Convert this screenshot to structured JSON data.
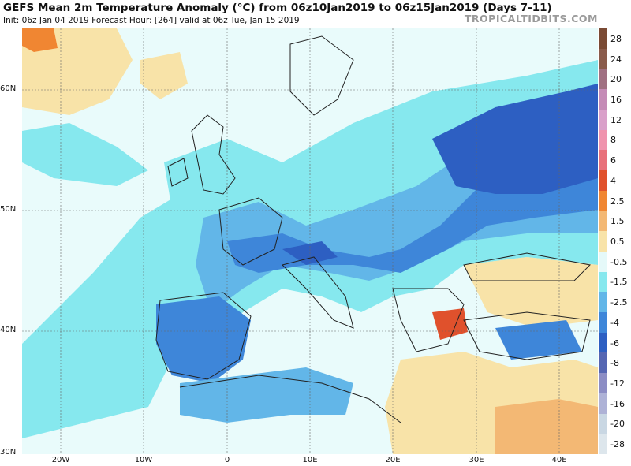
{
  "header": {
    "title": "GEFS Mean 2m Temperature Anomaly (°C) from 06z10Jan2019 to 06z15Jan2019 (Days 7-11)",
    "subtitle": "Init: 06z Jan 04 2019   Forecast Hour: [264]   valid at 06z Tue, Jan 15 2019",
    "brand": "TROPICALTIDBITS.COM"
  },
  "axes": {
    "lat_labels": [
      "60N",
      "50N",
      "40N",
      "30N"
    ],
    "lon_labels": [
      "20W",
      "10W",
      "0",
      "10E",
      "20E",
      "30E",
      "40E"
    ]
  },
  "colorbar": {
    "labels": [
      "28",
      "24",
      "20",
      "16",
      "12",
      "8",
      "6",
      "4",
      "2.5",
      "1.5",
      "0.5",
      "-0.5",
      "-1.5",
      "-2.5",
      "-4",
      "-6",
      "-8",
      "-12",
      "-16",
      "-20",
      "-28"
    ],
    "colors": [
      "#7a4a34",
      "#8a5b4b",
      "#a07082",
      "#c48bb6",
      "#d9a0c9",
      "#ef93ad",
      "#e8707a",
      "#e0512c",
      "#f08632",
      "#f3b874",
      "#f8e3a8",
      "#e5f9f9",
      "#86e8ee",
      "#62b6e8",
      "#3e86d9",
      "#2d5fc2",
      "#5566b2",
      "#8c8dc4",
      "#aeb2d6",
      "#c9d7e3",
      "#dde6ec"
    ]
  }
}
